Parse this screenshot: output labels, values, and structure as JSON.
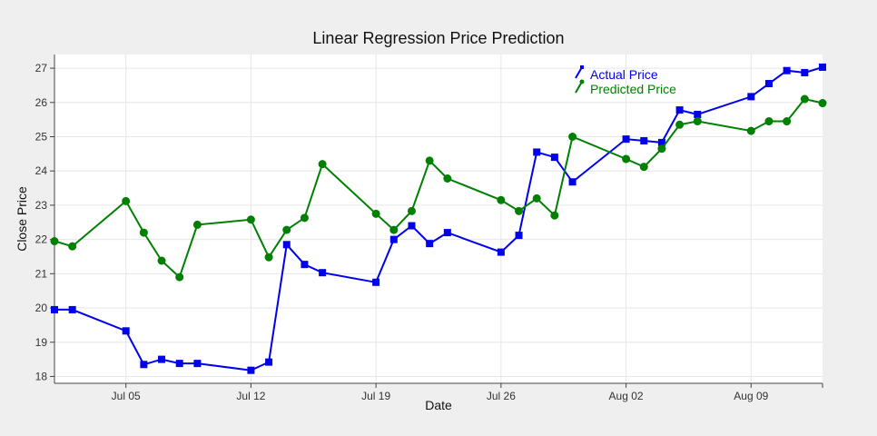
{
  "chart_data": {
    "type": "line",
    "title": "Linear Regression Price Prediction",
    "xlabel": "Date",
    "ylabel": "Close Price",
    "x_axis_type": "date",
    "xlim": [
      "2023-07-01",
      "2023-08-13"
    ],
    "ylim": [
      17.8,
      27.4
    ],
    "x_ticks": [
      {
        "date": "2023-07-05",
        "label": "Jul 05"
      },
      {
        "date": "2023-07-12",
        "label": "Jul 12"
      },
      {
        "date": "2023-07-19",
        "label": "Jul 19"
      },
      {
        "date": "2023-07-26",
        "label": "Jul 26"
      },
      {
        "date": "2023-08-02",
        "label": "Aug 02"
      },
      {
        "date": "2023-08-09",
        "label": "Aug 09"
      }
    ],
    "y_ticks": [
      18,
      19,
      20,
      21,
      22,
      23,
      24,
      25,
      26,
      27
    ],
    "grid": true,
    "legend_position": "top-right",
    "series": [
      {
        "name": "Actual Price",
        "color": "#0000ee",
        "marker": "square",
        "points": [
          {
            "x": "2023-07-01",
            "y": 19.95
          },
          {
            "x": "2023-07-02",
            "y": 19.95
          },
          {
            "x": "2023-07-05",
            "y": 19.33
          },
          {
            "x": "2023-07-06",
            "y": 18.35
          },
          {
            "x": "2023-07-07",
            "y": 18.5
          },
          {
            "x": "2023-07-08",
            "y": 18.38
          },
          {
            "x": "2023-07-09",
            "y": 18.38
          },
          {
            "x": "2023-07-12",
            "y": 18.18
          },
          {
            "x": "2023-07-13",
            "y": 18.42
          },
          {
            "x": "2023-07-14",
            "y": 21.85
          },
          {
            "x": "2023-07-15",
            "y": 21.27
          },
          {
            "x": "2023-07-16",
            "y": 21.03
          },
          {
            "x": "2023-07-19",
            "y": 20.75
          },
          {
            "x": "2023-07-20",
            "y": 22.0
          },
          {
            "x": "2023-07-21",
            "y": 22.4
          },
          {
            "x": "2023-07-22",
            "y": 21.88
          },
          {
            "x": "2023-07-23",
            "y": 22.2
          },
          {
            "x": "2023-07-26",
            "y": 21.63
          },
          {
            "x": "2023-07-27",
            "y": 22.12
          },
          {
            "x": "2023-07-28",
            "y": 24.55
          },
          {
            "x": "2023-07-29",
            "y": 24.4
          },
          {
            "x": "2023-07-30",
            "y": 23.68
          },
          {
            "x": "2023-08-02",
            "y": 24.93
          },
          {
            "x": "2023-08-03",
            "y": 24.88
          },
          {
            "x": "2023-08-04",
            "y": 24.83
          },
          {
            "x": "2023-08-05",
            "y": 25.78
          },
          {
            "x": "2023-08-06",
            "y": 25.65
          },
          {
            "x": "2023-08-09",
            "y": 26.17
          },
          {
            "x": "2023-08-10",
            "y": 26.55
          },
          {
            "x": "2023-08-11",
            "y": 26.93
          },
          {
            "x": "2023-08-12",
            "y": 26.87
          },
          {
            "x": "2023-08-13",
            "y": 27.03
          }
        ]
      },
      {
        "name": "Predicted Price",
        "color": "#008000",
        "marker": "circle",
        "points": [
          {
            "x": "2023-07-01",
            "y": 21.95
          },
          {
            "x": "2023-07-02",
            "y": 21.8
          },
          {
            "x": "2023-07-05",
            "y": 23.12
          },
          {
            "x": "2023-07-06",
            "y": 22.2
          },
          {
            "x": "2023-07-07",
            "y": 21.38
          },
          {
            "x": "2023-07-08",
            "y": 20.9
          },
          {
            "x": "2023-07-09",
            "y": 22.43
          },
          {
            "x": "2023-07-12",
            "y": 22.58
          },
          {
            "x": "2023-07-13",
            "y": 21.48
          },
          {
            "x": "2023-07-14",
            "y": 22.28
          },
          {
            "x": "2023-07-15",
            "y": 22.63
          },
          {
            "x": "2023-07-16",
            "y": 24.2
          },
          {
            "x": "2023-07-19",
            "y": 22.75
          },
          {
            "x": "2023-07-20",
            "y": 22.28
          },
          {
            "x": "2023-07-21",
            "y": 22.83
          },
          {
            "x": "2023-07-22",
            "y": 24.3
          },
          {
            "x": "2023-07-23",
            "y": 23.78
          },
          {
            "x": "2023-07-26",
            "y": 23.15
          },
          {
            "x": "2023-07-27",
            "y": 22.83
          },
          {
            "x": "2023-07-28",
            "y": 23.2
          },
          {
            "x": "2023-07-29",
            "y": 22.7
          },
          {
            "x": "2023-07-30",
            "y": 25.0
          },
          {
            "x": "2023-08-02",
            "y": 24.35
          },
          {
            "x": "2023-08-03",
            "y": 24.12
          },
          {
            "x": "2023-08-04",
            "y": 24.65
          },
          {
            "x": "2023-08-05",
            "y": 25.35
          },
          {
            "x": "2023-08-06",
            "y": 25.45
          },
          {
            "x": "2023-08-09",
            "y": 25.17
          },
          {
            "x": "2023-08-10",
            "y": 25.45
          },
          {
            "x": "2023-08-11",
            "y": 25.45
          },
          {
            "x": "2023-08-12",
            "y": 26.1
          },
          {
            "x": "2023-08-13",
            "y": 25.98
          }
        ]
      }
    ]
  }
}
